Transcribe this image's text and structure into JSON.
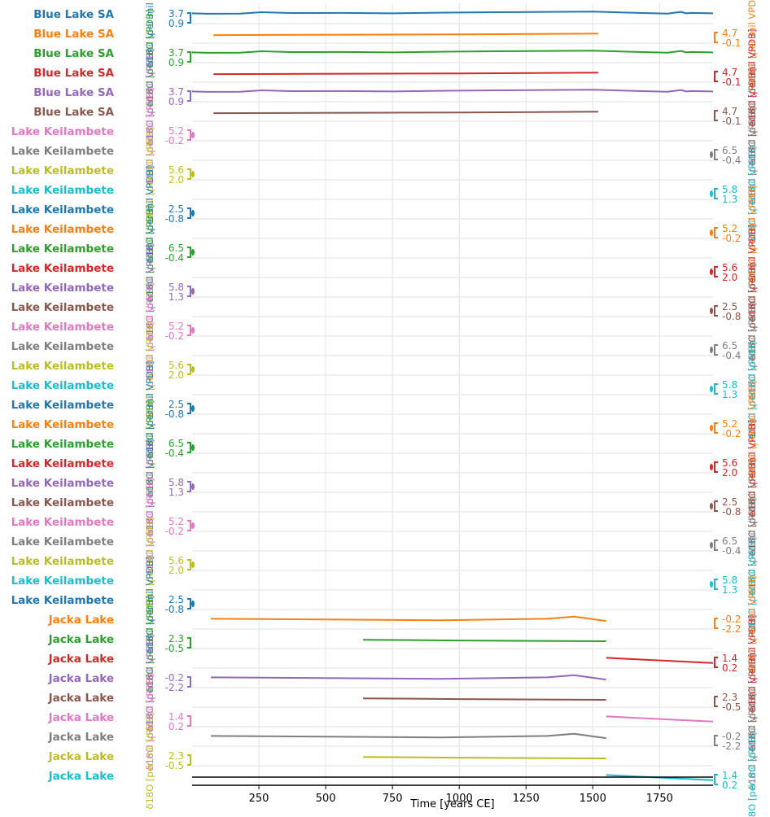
{
  "chart_data": {
    "type": "line",
    "title": "",
    "xlabel": "Time [years CE]",
    "xlim": [
      0,
      1950
    ],
    "xticks": [
      250,
      500,
      750,
      1000,
      1250,
      1500,
      1750
    ],
    "y_unit_label": "δ18O [per mil VPDB]",
    "series": [
      {
        "name": "Blue Lake SA",
        "color": "#1f77b4",
        "range": [
          "3.7",
          "0.9"
        ],
        "yaxis_side": "left",
        "x": [
          0,
          60,
          180,
          260,
          370,
          560,
          750,
          950,
          1140,
          1330,
          1500,
          1630,
          1780,
          1830,
          1850,
          1870,
          1950
        ],
        "y": [
          0.3,
          0.33,
          0.32,
          0.22,
          0.28,
          0.27,
          0.3,
          0.25,
          0.22,
          0.2,
          0.18,
          0.25,
          0.32,
          0.2,
          0.3,
          0.27,
          0.3
        ]
      },
      {
        "name": "Blue Lake SA",
        "color": "#ff7f0e",
        "range": [
          "4.7",
          "-0.1"
        ],
        "yaxis_side": "right",
        "x": [
          80,
          1000,
          1520
        ],
        "y": [
          0.45,
          0.4,
          0.35
        ]
      },
      {
        "name": "Blue Lake SA",
        "color": "#2ca02c",
        "range": [
          "3.7",
          "0.9"
        ],
        "yaxis_side": "left",
        "x": [
          0,
          60,
          180,
          260,
          370,
          560,
          750,
          950,
          1140,
          1330,
          1500,
          1630,
          1780,
          1830,
          1850,
          1870,
          1950
        ],
        "y": [
          0.3,
          0.33,
          0.32,
          0.22,
          0.28,
          0.27,
          0.3,
          0.25,
          0.22,
          0.2,
          0.18,
          0.25,
          0.32,
          0.2,
          0.3,
          0.27,
          0.3
        ]
      },
      {
        "name": "Blue Lake SA",
        "color": "#d62728",
        "range": [
          "4.7",
          "-0.1"
        ],
        "yaxis_side": "right",
        "x": [
          80,
          1000,
          1520
        ],
        "y": [
          0.45,
          0.4,
          0.35
        ]
      },
      {
        "name": "Blue Lake SA",
        "color": "#9467bd",
        "range": [
          "3.7",
          "0.9"
        ],
        "yaxis_side": "left",
        "x": [
          0,
          60,
          180,
          260,
          370,
          560,
          750,
          950,
          1140,
          1330,
          1500,
          1630,
          1780,
          1830,
          1850,
          1870,
          1950
        ],
        "y": [
          0.3,
          0.33,
          0.32,
          0.22,
          0.28,
          0.27,
          0.3,
          0.25,
          0.22,
          0.2,
          0.18,
          0.25,
          0.32,
          0.2,
          0.3,
          0.27,
          0.3
        ]
      },
      {
        "name": "Blue Lake SA",
        "color": "#8c564b",
        "range": [
          "4.7",
          "-0.1"
        ],
        "yaxis_side": "right",
        "x": [
          80,
          1000,
          1520
        ],
        "y": [
          0.45,
          0.4,
          0.35
        ]
      },
      {
        "name": "Lake Keilambete",
        "color": "#e377c2",
        "range": [
          "5.2",
          "-0.2"
        ],
        "yaxis_side": "left",
        "x": [],
        "y": []
      },
      {
        "name": "Lake Keilambete",
        "color": "#7f7f7f",
        "range": [
          "6.5",
          "-0.4"
        ],
        "yaxis_side": "right",
        "x": [],
        "y": []
      },
      {
        "name": "Lake Keilambete",
        "color": "#bcbd22",
        "range": [
          "5.6",
          "2.0"
        ],
        "yaxis_side": "left",
        "x": [],
        "y": []
      },
      {
        "name": "Lake Keilambete",
        "color": "#17becf",
        "range": [
          "5.8",
          "1.3"
        ],
        "yaxis_side": "right",
        "x": [],
        "y": []
      },
      {
        "name": "Lake Keilambete",
        "color": "#1f77b4",
        "range": [
          "2.5",
          "-0.8"
        ],
        "yaxis_side": "left",
        "x": [],
        "y": []
      },
      {
        "name": "Lake Keilambete",
        "color": "#ff7f0e",
        "range": [
          "5.2",
          "-0.2"
        ],
        "yaxis_side": "right",
        "x": [],
        "y": []
      },
      {
        "name": "Lake Keilambete",
        "color": "#2ca02c",
        "range": [
          "6.5",
          "-0.4"
        ],
        "yaxis_side": "left",
        "x": [],
        "y": []
      },
      {
        "name": "Lake Keilambete",
        "color": "#d62728",
        "range": [
          "5.6",
          "2.0"
        ],
        "yaxis_side": "right",
        "x": [],
        "y": []
      },
      {
        "name": "Lake Keilambete",
        "color": "#9467bd",
        "range": [
          "5.8",
          "1.3"
        ],
        "yaxis_side": "left",
        "x": [],
        "y": []
      },
      {
        "name": "Lake Keilambete",
        "color": "#8c564b",
        "range": [
          "2.5",
          "-0.8"
        ],
        "yaxis_side": "right",
        "x": [],
        "y": []
      },
      {
        "name": "Lake Keilambete",
        "color": "#e377c2",
        "range": [
          "5.2",
          "-0.2"
        ],
        "yaxis_side": "left",
        "x": [],
        "y": []
      },
      {
        "name": "Lake Keilambete",
        "color": "#7f7f7f",
        "range": [
          "6.5",
          "-0.4"
        ],
        "yaxis_side": "right",
        "x": [],
        "y": []
      },
      {
        "name": "Lake Keilambete",
        "color": "#bcbd22",
        "range": [
          "5.6",
          "2.0"
        ],
        "yaxis_side": "left",
        "x": [],
        "y": []
      },
      {
        "name": "Lake Keilambete",
        "color": "#17becf",
        "range": [
          "5.8",
          "1.3"
        ],
        "yaxis_side": "right",
        "x": [],
        "y": []
      },
      {
        "name": "Lake Keilambete",
        "color": "#1f77b4",
        "range": [
          "2.5",
          "-0.8"
        ],
        "yaxis_side": "left",
        "x": [],
        "y": []
      },
      {
        "name": "Lake Keilambete",
        "color": "#ff7f0e",
        "range": [
          "5.2",
          "-0.2"
        ],
        "yaxis_side": "right",
        "x": [],
        "y": []
      },
      {
        "name": "Lake Keilambete",
        "color": "#2ca02c",
        "range": [
          "6.5",
          "-0.4"
        ],
        "yaxis_side": "left",
        "x": [],
        "y": []
      },
      {
        "name": "Lake Keilambete",
        "color": "#d62728",
        "range": [
          "5.6",
          "2.0"
        ],
        "yaxis_side": "right",
        "x": [],
        "y": []
      },
      {
        "name": "Lake Keilambete",
        "color": "#9467bd",
        "range": [
          "5.8",
          "1.3"
        ],
        "yaxis_side": "left",
        "x": [],
        "y": []
      },
      {
        "name": "Lake Keilambete",
        "color": "#8c564b",
        "range": [
          "2.5",
          "-0.8"
        ],
        "yaxis_side": "right",
        "x": [],
        "y": []
      },
      {
        "name": "Lake Keilambete",
        "color": "#e377c2",
        "range": [
          "5.2",
          "-0.2"
        ],
        "yaxis_side": "left",
        "x": [],
        "y": []
      },
      {
        "name": "Lake Keilambete",
        "color": "#7f7f7f",
        "range": [
          "6.5",
          "-0.4"
        ],
        "yaxis_side": "right",
        "x": [],
        "y": []
      },
      {
        "name": "Lake Keilambete",
        "color": "#bcbd22",
        "range": [
          "5.6",
          "2.0"
        ],
        "yaxis_side": "left",
        "x": [],
        "y": []
      },
      {
        "name": "Lake Keilambete",
        "color": "#17becf",
        "range": [
          "5.8",
          "1.3"
        ],
        "yaxis_side": "right",
        "x": [],
        "y": []
      },
      {
        "name": "Lake Keilambete",
        "color": "#1f77b4",
        "range": [
          "2.5",
          "-0.8"
        ],
        "yaxis_side": "left",
        "x": [],
        "y": []
      },
      {
        "name": "Jacka Lake",
        "color": "#ff7f0e",
        "range": [
          "-0.2",
          "-2.2"
        ],
        "yaxis_side": "right",
        "x": [
          70,
          500,
          930,
          1330,
          1430,
          1550
        ],
        "y": [
          0.3,
          0.35,
          0.4,
          0.3,
          0.15,
          0.45
        ]
      },
      {
        "name": "Jacka Lake",
        "color": "#2ca02c",
        "range": [
          "2.3",
          "-0.5"
        ],
        "yaxis_side": "left",
        "x": [
          640,
          1000,
          1550
        ],
        "y": [
          0.4,
          0.45,
          0.5
        ]
      },
      {
        "name": "Jacka Lake",
        "color": "#d62728",
        "range": [
          "1.4",
          "0.2"
        ],
        "yaxis_side": "right",
        "x": [
          1550,
          1950
        ],
        "y": [
          0.3,
          0.65
        ]
      },
      {
        "name": "Jacka Lake",
        "color": "#9467bd",
        "range": [
          "-0.2",
          "-2.2"
        ],
        "yaxis_side": "left",
        "x": [
          70,
          500,
          930,
          1330,
          1430,
          1550
        ],
        "y": [
          0.3,
          0.35,
          0.4,
          0.3,
          0.15,
          0.45
        ]
      },
      {
        "name": "Jacka Lake",
        "color": "#8c564b",
        "range": [
          "2.3",
          "-0.5"
        ],
        "yaxis_side": "right",
        "x": [
          640,
          1000,
          1550
        ],
        "y": [
          0.4,
          0.45,
          0.5
        ]
      },
      {
        "name": "Jacka Lake",
        "color": "#e377c2",
        "range": [
          "1.4",
          "0.2"
        ],
        "yaxis_side": "left",
        "x": [
          1550,
          1950
        ],
        "y": [
          0.3,
          0.65
        ]
      },
      {
        "name": "Jacka Lake",
        "color": "#7f7f7f",
        "range": [
          "-0.2",
          "-2.2"
        ],
        "yaxis_side": "right",
        "x": [
          70,
          500,
          930,
          1330,
          1430,
          1550
        ],
        "y": [
          0.3,
          0.35,
          0.4,
          0.3,
          0.15,
          0.45
        ]
      },
      {
        "name": "Jacka Lake",
        "color": "#bcbd22",
        "range": [
          "2.3",
          "-0.5"
        ],
        "yaxis_side": "left",
        "x": [
          640,
          1000,
          1550
        ],
        "y": [
          0.4,
          0.45,
          0.5
        ]
      },
      {
        "name": "Jacka Lake",
        "color": "#17becf",
        "range": [
          "1.4",
          "0.2"
        ],
        "yaxis_side": "right",
        "x": [
          1550,
          1950
        ],
        "y": [
          0.3,
          0.65
        ]
      }
    ]
  }
}
